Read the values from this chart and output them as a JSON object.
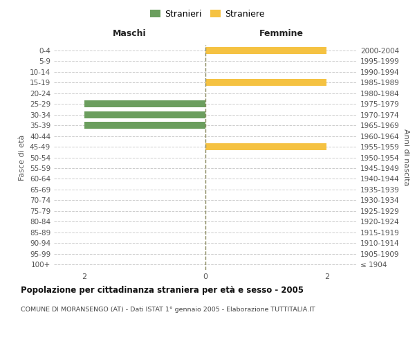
{
  "age_groups": [
    "100+",
    "95-99",
    "90-94",
    "85-89",
    "80-84",
    "75-79",
    "70-74",
    "65-69",
    "60-64",
    "55-59",
    "50-54",
    "45-49",
    "40-44",
    "35-39",
    "30-34",
    "25-29",
    "20-24",
    "15-19",
    "10-14",
    "5-9",
    "0-4"
  ],
  "birth_years": [
    "≤ 1904",
    "1905-1909",
    "1910-1914",
    "1915-1919",
    "1920-1924",
    "1925-1929",
    "1930-1934",
    "1935-1939",
    "1940-1944",
    "1945-1949",
    "1950-1954",
    "1955-1959",
    "1960-1964",
    "1965-1969",
    "1970-1974",
    "1975-1979",
    "1980-1984",
    "1985-1989",
    "1990-1994",
    "1995-1999",
    "2000-2004"
  ],
  "males": [
    0,
    0,
    0,
    0,
    0,
    0,
    0,
    0,
    0,
    0,
    0,
    0,
    0,
    2,
    2,
    2,
    0,
    0,
    0,
    0,
    0
  ],
  "females": [
    0,
    0,
    0,
    0,
    0,
    0,
    0,
    0,
    0,
    0,
    0,
    2,
    0,
    0,
    0,
    0,
    0,
    2,
    0,
    0,
    2
  ],
  "male_color": "#6b9e5e",
  "female_color": "#f5c242",
  "xlim": 2.5,
  "title": "Popolazione per cittadinanza straniera per età e sesso - 2005",
  "subtitle": "COMUNE DI MORANSENGO (AT) - Dati ISTAT 1° gennaio 2005 - Elaborazione TUTTITALIA.IT",
  "xlabel_left": "Maschi",
  "xlabel_right": "Femmine",
  "ylabel_left": "Fasce di età",
  "ylabel_right": "Anni di nascita",
  "legend_male": "Stranieri",
  "legend_female": "Straniere",
  "background_color": "#ffffff",
  "grid_color": "#cccccc",
  "tick_color": "#555555",
  "xticks": [
    -2,
    0,
    2
  ]
}
